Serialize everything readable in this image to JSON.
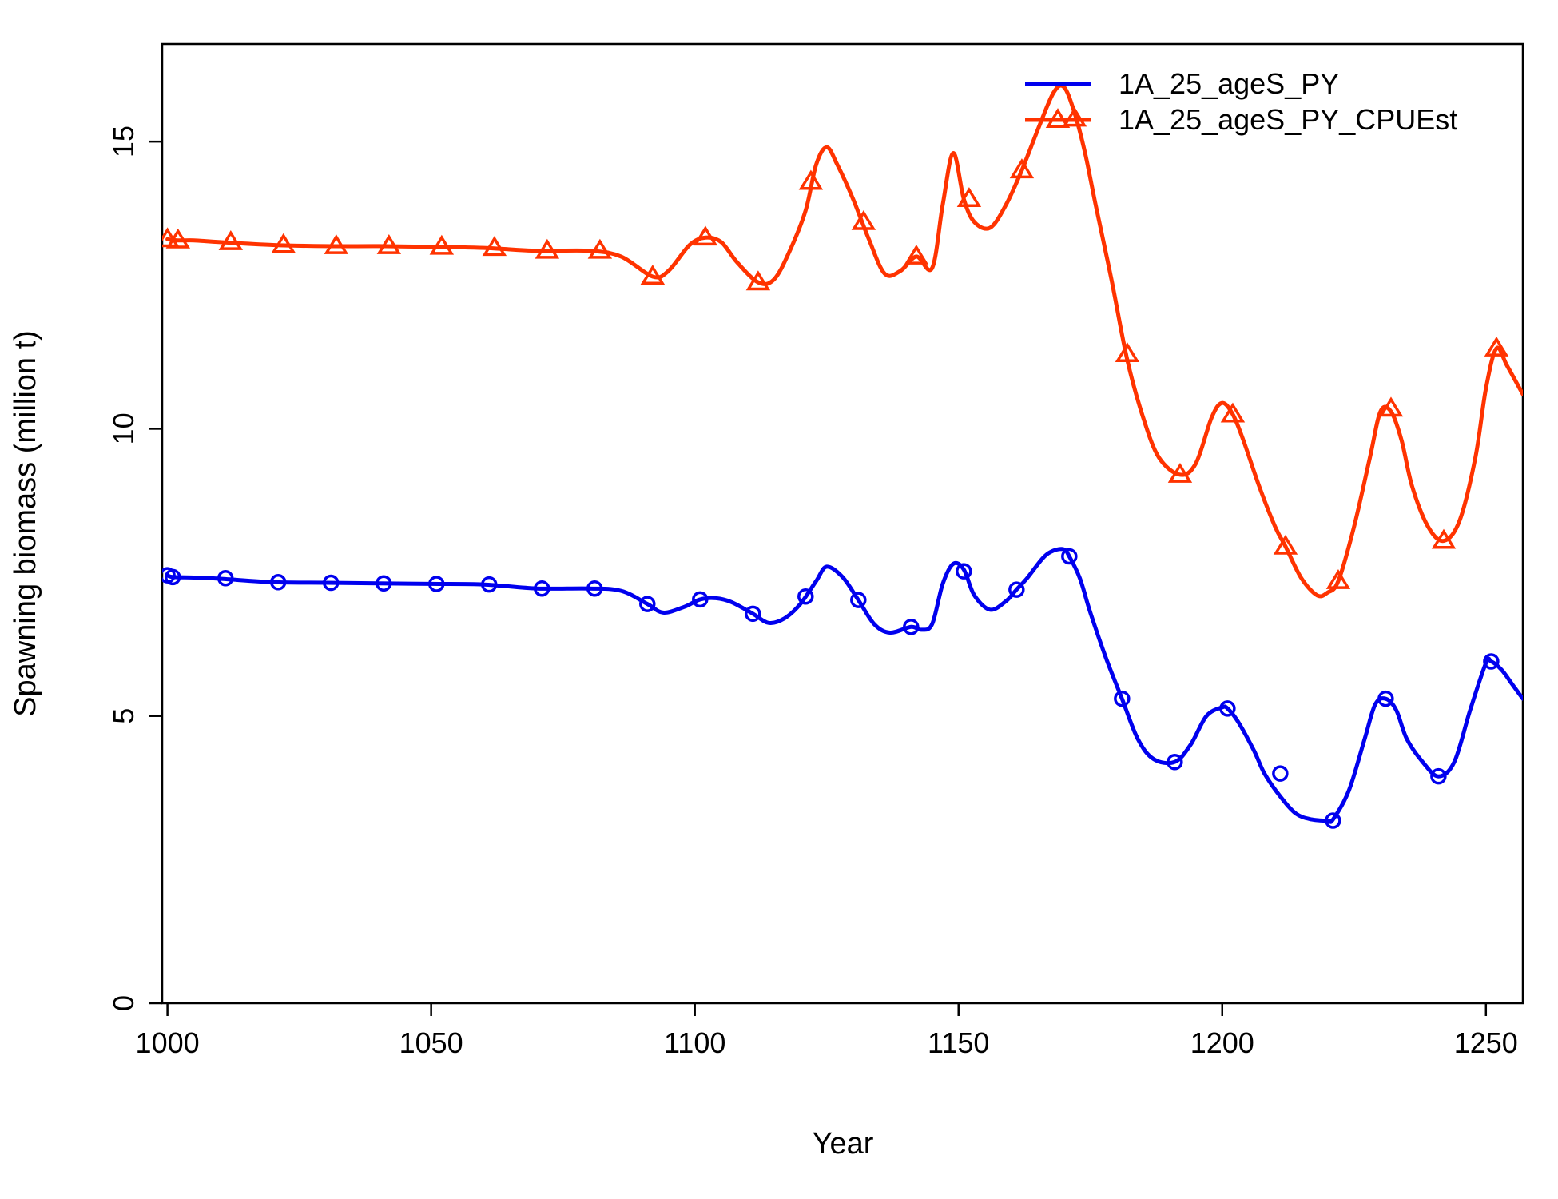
{
  "chart_data": {
    "type": "line",
    "title": "",
    "xlabel": "Year",
    "ylabel": "Spawning biomass (million t)",
    "xlim": [
      999,
      1257
    ],
    "ylim": [
      0,
      16.7
    ],
    "x_ticks": [
      1000,
      1050,
      1100,
      1150,
      1200,
      1250
    ],
    "y_ticks": [
      0,
      5,
      10,
      15
    ],
    "grid": false,
    "legend_position": "top-right",
    "series": [
      {
        "name": "1A_25_ageS_PY",
        "color": "#0000ee",
        "marker": "circle",
        "x": [
          1000,
          1001,
          1005,
          1010,
          1020,
          1030,
          1040,
          1050,
          1060,
          1070,
          1080,
          1086,
          1091,
          1094,
          1098,
          1101,
          1104,
          1107,
          1111,
          1114,
          1117,
          1120,
          1123,
          1125,
          1128,
          1131,
          1134,
          1137,
          1141,
          1143,
          1145,
          1147,
          1149,
          1151,
          1153,
          1156,
          1159,
          1161,
          1163,
          1166,
          1168,
          1170,
          1171,
          1173,
          1175,
          1178,
          1181,
          1184,
          1187,
          1191,
          1194,
          1197,
          1200,
          1201,
          1203,
          1206,
          1208,
          1211,
          1214,
          1217,
          1220,
          1221,
          1224,
          1227,
          1229,
          1231,
          1233,
          1235,
          1238,
          1241,
          1244,
          1247,
          1250,
          1251,
          1253,
          1255,
          1257
        ],
        "values": [
          7.45,
          7.42,
          7.41,
          7.39,
          7.33,
          7.32,
          7.31,
          7.3,
          7.29,
          7.22,
          7.22,
          7.18,
          6.95,
          6.8,
          6.9,
          7.03,
          7.05,
          6.98,
          6.78,
          6.62,
          6.7,
          6.95,
          7.35,
          7.6,
          7.42,
          7.02,
          6.6,
          6.45,
          6.55,
          6.5,
          6.6,
          7.3,
          7.65,
          7.55,
          7.1,
          6.85,
          7.0,
          7.2,
          7.4,
          7.75,
          7.88,
          7.9,
          7.78,
          7.4,
          6.8,
          6.0,
          5.3,
          4.6,
          4.25,
          4.2,
          4.5,
          5.0,
          5.15,
          5.13,
          4.9,
          4.4,
          4.0,
          3.6,
          3.3,
          3.2,
          3.18,
          3.2,
          3.7,
          4.6,
          5.2,
          5.3,
          5.1,
          4.6,
          4.2,
          3.95,
          4.2,
          5.1,
          5.92,
          5.95,
          5.8,
          5.55,
          5.3
        ],
        "marker_x": [
          1000,
          1001,
          1011,
          1021,
          1031,
          1041,
          1051,
          1061,
          1071,
          1081,
          1091,
          1101,
          1111,
          1121,
          1131,
          1141,
          1151,
          1161,
          1171,
          1181,
          1191,
          1201,
          1211,
          1221,
          1231,
          1241,
          1251
        ],
        "marker_values": [
          7.45,
          7.42,
          7.4,
          7.33,
          7.32,
          7.31,
          7.3,
          7.29,
          7.22,
          7.22,
          6.95,
          7.03,
          6.78,
          7.08,
          7.02,
          6.55,
          7.52,
          7.2,
          7.78,
          5.3,
          4.2,
          5.13,
          4.0,
          3.18,
          5.3,
          3.95,
          5.95
        ]
      },
      {
        "name": "1A_25_ageS_PY_CPUEst",
        "color": "#ff3300",
        "marker": "triangle",
        "x": [
          1000,
          1002,
          1005,
          1010,
          1020,
          1030,
          1040,
          1050,
          1060,
          1070,
          1080,
          1086,
          1092,
          1095,
          1099,
          1102,
          1105,
          1108,
          1112,
          1115,
          1118,
          1121,
          1123,
          1125,
          1127,
          1130,
          1133,
          1136,
          1139,
          1142,
          1145,
          1147,
          1149,
          1151,
          1153,
          1156,
          1159,
          1162,
          1165,
          1168,
          1170,
          1172,
          1174,
          1176,
          1179,
          1182,
          1185,
          1188,
          1192,
          1195,
          1198,
          1200,
          1202,
          1204,
          1207,
          1210,
          1212,
          1215,
          1218,
          1220,
          1222,
          1225,
          1228,
          1230,
          1232,
          1234,
          1236,
          1239,
          1242,
          1245,
          1248,
          1250,
          1252,
          1254,
          1257
        ],
        "values": [
          13.3,
          13.28,
          13.28,
          13.25,
          13.2,
          13.18,
          13.18,
          13.17,
          13.15,
          13.1,
          13.1,
          13.0,
          12.65,
          12.75,
          13.2,
          13.33,
          13.25,
          12.9,
          12.55,
          12.6,
          13.1,
          13.8,
          14.6,
          14.9,
          14.6,
          14.0,
          13.3,
          12.7,
          12.75,
          13.0,
          12.8,
          13.9,
          14.8,
          14.0,
          13.6,
          13.5,
          13.9,
          14.5,
          15.2,
          15.85,
          15.95,
          15.5,
          14.8,
          13.9,
          12.6,
          11.2,
          10.2,
          9.5,
          9.2,
          9.4,
          10.2,
          10.45,
          10.25,
          9.8,
          9.0,
          8.3,
          7.95,
          7.4,
          7.1,
          7.15,
          7.35,
          8.3,
          9.5,
          10.3,
          10.3,
          9.8,
          9.0,
          8.3,
          8.05,
          8.4,
          9.5,
          10.7,
          11.4,
          11.1,
          10.6
        ],
        "marker_x": [
          1000,
          1002,
          1012,
          1022,
          1032,
          1042,
          1052,
          1062,
          1072,
          1082,
          1092,
          1102,
          1112,
          1122,
          1132,
          1142,
          1152,
          1162,
          1172,
          1182,
          1192,
          1202,
          1212,
          1222,
          1232,
          1242,
          1252
        ],
        "marker_values": [
          13.3,
          13.28,
          13.25,
          13.2,
          13.18,
          13.18,
          13.17,
          13.15,
          13.1,
          13.1,
          12.65,
          13.33,
          12.55,
          14.3,
          13.6,
          13.0,
          14.0,
          14.5,
          15.4,
          11.3,
          9.2,
          10.25,
          7.95,
          7.35,
          10.35,
          8.05,
          11.4
        ]
      }
    ]
  }
}
